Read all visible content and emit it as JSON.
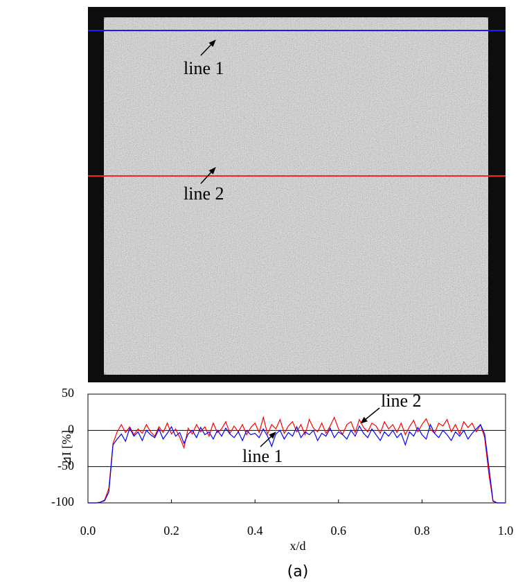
{
  "image": {
    "labels": [
      "line 1",
      "line 2"
    ]
  },
  "chart_data": {
    "type": "line",
    "xlabel": "x/d",
    "ylabel": "⊿I [%]",
    "xlim": [
      0,
      1
    ],
    "ylim": [
      -100,
      50
    ],
    "xticks": [
      {
        "value": 0,
        "label": "0.0"
      },
      0.2,
      0.4,
      0.6,
      0.8,
      {
        "value": 1,
        "label": "1.0"
      }
    ],
    "yticks": [
      -100,
      -50,
      0,
      50
    ],
    "grid": true,
    "x": [
      0,
      0.01,
      0.02,
      0.03,
      0.04,
      0.05,
      0.06,
      0.07,
      0.08,
      0.09,
      0.1,
      0.11,
      0.12,
      0.13,
      0.14,
      0.15,
      0.16,
      0.17,
      0.18,
      0.19,
      0.2,
      0.21,
      0.22,
      0.23,
      0.24,
      0.25,
      0.26,
      0.27,
      0.28,
      0.29,
      0.3,
      0.31,
      0.32,
      0.33,
      0.34,
      0.35,
      0.36,
      0.37,
      0.38,
      0.39,
      0.4,
      0.41,
      0.42,
      0.43,
      0.44,
      0.45,
      0.46,
      0.47,
      0.48,
      0.49,
      0.5,
      0.51,
      0.52,
      0.53,
      0.54,
      0.55,
      0.56,
      0.57,
      0.58,
      0.59,
      0.6,
      0.61,
      0.62,
      0.63,
      0.64,
      0.65,
      0.66,
      0.67,
      0.68,
      0.69,
      0.7,
      0.71,
      0.72,
      0.73,
      0.74,
      0.75,
      0.76,
      0.77,
      0.78,
      0.79,
      0.8,
      0.81,
      0.82,
      0.83,
      0.84,
      0.85,
      0.86,
      0.87,
      0.88,
      0.89,
      0.9,
      0.91,
      0.92,
      0.93,
      0.94,
      0.95,
      0.96,
      0.97,
      0.98,
      0.99,
      1
    ],
    "series": [
      {
        "name": "line 1",
        "color": "#0000ff",
        "values": [
          -100,
          -100,
          -100,
          -99,
          -97,
          -85,
          -20,
          -12,
          -5,
          -15,
          3,
          -8,
          -2,
          -14,
          0,
          -6,
          -10,
          2,
          -12,
          -4,
          5,
          -8,
          -3,
          -18,
          -5,
          0,
          -10,
          4,
          -6,
          -2,
          -12,
          0,
          -8,
          3,
          -5,
          -10,
          -2,
          -14,
          0,
          -6,
          -4,
          -10,
          2,
          -8,
          -22,
          -5,
          0,
          -12,
          -3,
          -8,
          5,
          -10,
          -2,
          -6,
          0,
          -14,
          -4,
          -8,
          3,
          -10,
          -2,
          -6,
          -12,
          0,
          -8,
          6,
          -4,
          -10,
          2,
          -6,
          -14,
          -2,
          -8,
          0,
          -10,
          -4,
          -20,
          -2,
          -8,
          4,
          -6,
          -12,
          8,
          -4,
          -10,
          0,
          -6,
          -14,
          -2,
          -8,
          0,
          -12,
          -4,
          2,
          8,
          -5,
          -50,
          -97,
          -100,
          -100,
          -100
        ]
      },
      {
        "name": "line 2",
        "color": "#ff0000",
        "values": [
          -100,
          -100,
          -100,
          -99,
          -96,
          -80,
          -18,
          -2,
          8,
          -3,
          5,
          -6,
          2,
          -4,
          8,
          -2,
          -8,
          5,
          -3,
          10,
          -5,
          2,
          -10,
          -24,
          3,
          -5,
          8,
          -2,
          5,
          -8,
          10,
          -3,
          2,
          12,
          -4,
          6,
          -2,
          8,
          -6,
          4,
          10,
          -3,
          18,
          -5,
          8,
          2,
          15,
          -4,
          6,
          12,
          -2,
          8,
          -6,
          15,
          3,
          -2,
          10,
          -4,
          6,
          18,
          2,
          -5,
          8,
          12,
          -3,
          15,
          4,
          -2,
          10,
          6,
          -4,
          12,
          2,
          8,
          -3,
          10,
          -6,
          5,
          14,
          -2,
          8,
          16,
          2,
          -4,
          10,
          6,
          15,
          -2,
          8,
          -5,
          12,
          4,
          10,
          -2,
          8,
          -10,
          -60,
          -98,
          -100,
          -100,
          -100
        ]
      }
    ]
  },
  "caption": "(a)"
}
